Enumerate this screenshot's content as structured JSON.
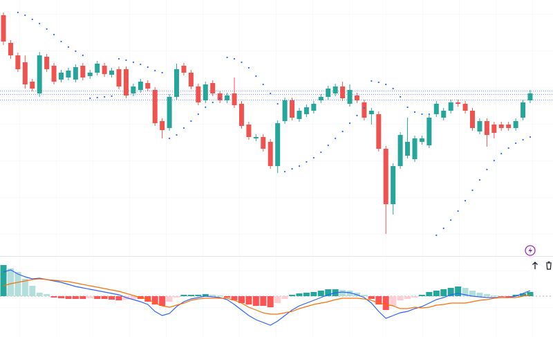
{
  "chart_data": [
    {
      "type": "candlestick",
      "ylim": [
        0,
        350
      ],
      "up_color": "#26a69a",
      "down_color": "#ef5350",
      "open": [
        328,
        288,
        270,
        260,
        232,
        215,
        268,
        255,
        235,
        238,
        235,
        255,
        240,
        245,
        255,
        242,
        250,
        250,
        215,
        220,
        230,
        220,
        175,
        165,
        210,
        255,
        245,
        225,
        205,
        230,
        215,
        205,
        215,
        200,
        170,
        150,
        152,
        145,
        110,
        175,
        205,
        178,
        185,
        190,
        205,
        210,
        215,
        225,
        200,
        212,
        202,
        185,
        185,
        135,
        55,
        110,
        125,
        120,
        145,
        140,
        185,
        180,
        190,
        202,
        200,
        190,
        160,
        175,
        170,
        170,
        170,
        165,
        180,
        205
      ],
      "high": [
        332,
        292,
        274,
        270,
        236,
        275,
        272,
        259,
        249,
        252,
        257,
        259,
        249,
        262,
        259,
        252,
        254,
        254,
        229,
        236,
        234,
        224,
        179,
        214,
        258,
        259,
        249,
        229,
        232,
        234,
        219,
        216,
        238,
        204,
        174,
        156,
        156,
        149,
        176,
        209,
        209,
        194,
        199,
        204,
        214,
        226,
        229,
        232,
        228,
        216,
        206,
        194,
        189,
        139,
        114,
        159,
        180,
        154,
        154,
        184,
        204,
        194,
        206,
        206,
        204,
        194,
        179,
        179,
        174,
        174,
        174,
        179,
        206,
        220
      ],
      "low": [
        285,
        265,
        246,
        222,
        218,
        210,
        246,
        228,
        231,
        234,
        231,
        234,
        236,
        241,
        239,
        238,
        221,
        208,
        211,
        216,
        218,
        168,
        150,
        161,
        206,
        241,
        221,
        198,
        201,
        211,
        201,
        201,
        194,
        164,
        148,
        146,
        131,
        106,
        100,
        171,
        176,
        174,
        181,
        186,
        201,
        206,
        211,
        204,
        196,
        201,
        176,
        170,
        131,
        12,
        40,
        106,
        121,
        116,
        141,
        136,
        181,
        176,
        186,
        196,
        186,
        161,
        156,
        138,
        150,
        161,
        161,
        161,
        176,
        201
      ],
      "close": [
        290,
        270,
        250,
        228,
        222,
        270,
        250,
        232,
        245,
        248,
        253,
        238,
        245,
        258,
        243,
        248,
        225,
        212,
        225,
        232,
        222,
        172,
        162,
        210,
        250,
        245,
        225,
        202,
        228,
        215,
        205,
        212,
        198,
        168,
        152,
        152,
        135,
        110,
        172,
        205,
        180,
        190,
        195,
        200,
        210,
        222,
        225,
        208,
        220,
        205,
        180,
        190,
        135,
        55,
        110,
        155,
        145,
        150,
        150,
        180,
        200,
        190,
        202,
        200,
        190,
        165,
        175,
        155,
        158,
        165,
        165,
        175,
        202,
        215
      ],
      "sar": {
        "color": "#2962ff",
        "values": [
          null,
          null,
          332,
          328,
          322,
          316,
          308,
          300,
          290,
          282,
          276,
          270,
          208,
          209,
          210,
          211,
          265,
          263,
          260,
          257,
          253,
          248,
          245,
          150,
          155,
          165,
          175,
          185,
          195,
          202,
          208,
          267,
          265,
          260,
          252,
          240,
          228,
          215,
          200,
          102,
          106,
          110,
          116,
          122,
          130,
          140,
          150,
          160,
          172,
          183,
          194,
          233,
          231,
          228,
          222,
          210,
          195,
          188,
          185,
          185,
          10,
          20,
          32,
          45,
          60,
          75,
          90,
          105,
          118,
          128,
          136,
          143,
          148,
          152
        ]
      },
      "price_lines": {
        "color": "#2962ff",
        "values": [
          219,
          214,
          206
        ]
      }
    },
    {
      "type": "macd",
      "ylim": [
        -59,
        56
      ],
      "histogram": {
        "colors": [
          "#26a69a",
          "#b2dfdb",
          "#ffcdd2",
          "#ff5252"
        ],
        "values": [
          45,
          40,
          35,
          25,
          15,
          5,
          3,
          -2,
          -3,
          -4,
          -4,
          -4,
          -3,
          -4,
          -4,
          -5,
          -6,
          -5,
          -4,
          -4,
          -8,
          -12,
          -14,
          -8,
          -2,
          2,
          2,
          2,
          3,
          2,
          1,
          -2,
          -6,
          -10,
          -12,
          -14,
          -14,
          -16,
          -10,
          -4,
          2,
          4,
          5,
          6,
          8,
          10,
          10,
          9,
          8,
          5,
          2,
          -4,
          -12,
          -20,
          -14,
          -6,
          -4,
          -2,
          2,
          6,
          8,
          10,
          12,
          14,
          12,
          8,
          5,
          3,
          1,
          -1,
          -2,
          2,
          4,
          6
        ]
      },
      "series": [
        {
          "color": "#2962ff",
          "values": [
            35,
            38,
            32,
            28,
            25,
            26,
            24,
            22,
            20,
            17,
            14,
            12,
            10,
            8,
            6,
            4,
            2,
            -2,
            -5,
            -8,
            -12,
            -22,
            -28,
            -25,
            -15,
            -8,
            -4,
            -2,
            0,
            -1,
            -2,
            -5,
            -12,
            -20,
            -28,
            -34,
            -38,
            -42,
            -36,
            -28,
            -20,
            -14,
            -10,
            -6,
            -2,
            2,
            5,
            6,
            5,
            2,
            -2,
            -10,
            -22,
            -32,
            -28,
            -24,
            -22,
            -18,
            -15,
            -10,
            -5,
            -2,
            2,
            4,
            2,
            0,
            -1,
            -2,
            -2,
            -2,
            -2,
            0,
            4,
            8
          ]
        },
        {
          "color": "#ff6d00",
          "values": [
            15,
            18,
            20,
            22,
            24,
            25,
            24,
            23,
            22,
            21,
            19,
            17,
            15,
            13,
            11,
            9,
            7,
            4,
            1,
            -2,
            -4,
            -10,
            -14,
            -16,
            -13,
            -10,
            -6,
            -4,
            -3,
            -3,
            -3,
            -3,
            -6,
            -10,
            -16,
            -20,
            -24,
            -26,
            -26,
            -24,
            -22,
            -18,
            -15,
            -12,
            -10,
            -8,
            -5,
            -3,
            -3,
            -3,
            -4,
            -6,
            -10,
            -12,
            -14,
            -18,
            -18,
            -16,
            -17,
            -16,
            -13,
            -12,
            -10,
            -10,
            -10,
            -8,
            -6,
            -5,
            -3,
            -2,
            -2,
            -2,
            0,
            2
          ]
        }
      ]
    }
  ]
}
